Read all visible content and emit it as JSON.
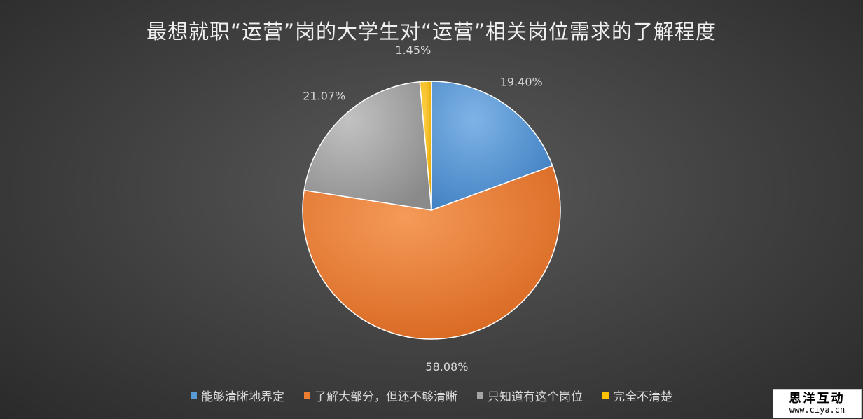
{
  "chart_data": {
    "type": "pie",
    "title": "最想就职“运营”岗的大学生对“运营”相关岗位需求的了解程度",
    "slices": [
      {
        "name": "能够清晰地界定",
        "value": 19.4,
        "label": "19.40%",
        "color": "#5b9bd5"
      },
      {
        "name": "了解大部分，但还不够清晰",
        "value": 58.08,
        "label": "58.08%",
        "color": "#ed7d31"
      },
      {
        "name": "只知道有这个岗位",
        "value": 21.07,
        "label": "21.07%",
        "color": "#a5a5a5"
      },
      {
        "name": "完全不清楚",
        "value": 1.45,
        "label": "1.45%",
        "color": "#ffc000"
      }
    ],
    "legend_position": "bottom"
  },
  "watermark": {
    "line1": "思洋互动",
    "line2": "www.ciya.cn"
  }
}
